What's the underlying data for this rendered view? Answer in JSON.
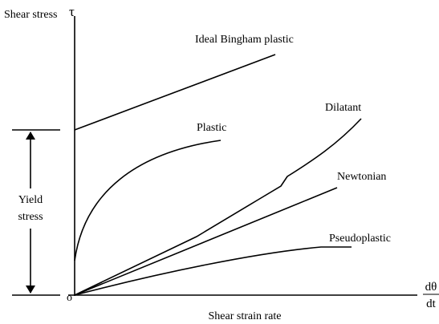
{
  "axes": {
    "y_label": "Shear stress",
    "y_symbol": "τ",
    "origin": "o",
    "x_label": "Shear strain rate",
    "x_symbol_numerator": "dθ",
    "x_symbol_denominator": "dt"
  },
  "curves": [
    {
      "label": "Ideal Bingham plastic"
    },
    {
      "label": "Plastic"
    },
    {
      "label": "Dilatant"
    },
    {
      "label": "Newtonian"
    },
    {
      "label": "Pseudoplastic"
    }
  ],
  "yield_stress": {
    "line1": "Yield",
    "line2": "stress"
  }
}
